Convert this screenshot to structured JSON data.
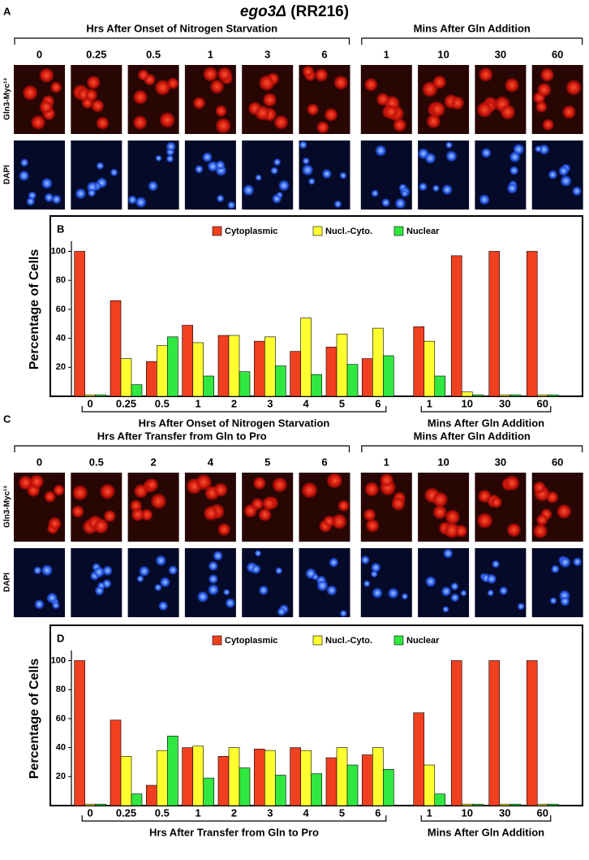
{
  "title": {
    "gene": "ego3Δ",
    "strain": "(RR216)"
  },
  "panel_a": {
    "label": "A",
    "groups": [
      {
        "label": "Hrs After Onset of Nitrogen Starvation",
        "times": [
          "0",
          "0.25",
          "0.5",
          "1",
          "3",
          "6"
        ]
      },
      {
        "label": "Mins After Gln Addition",
        "times": [
          "1",
          "10",
          "30",
          "60"
        ]
      }
    ],
    "rows": [
      "Gln3-Myc¹³",
      "DAPI"
    ]
  },
  "panel_c": {
    "label": "C",
    "groups": [
      {
        "label": "Hrs After Transfer from Gln to Pro",
        "times": [
          "0",
          "0.5",
          "2",
          "4",
          "5",
          "6"
        ]
      },
      {
        "label": "Mins After Gln Addition",
        "times": [
          "1",
          "10",
          "30",
          "60"
        ]
      }
    ],
    "rows": [
      "Gln3-Myc¹³",
      "DAPI"
    ]
  },
  "chart_data": [
    {
      "type": "bar",
      "label": "B",
      "y_label": "Percentage of Cells",
      "groups": [
        {
          "label": "Hrs After Onset of Nitrogen Starvation",
          "categories": [
            "0",
            "0.25",
            "0.5",
            "1",
            "2",
            "3",
            "4",
            "5",
            "6"
          ]
        },
        {
          "label": "Mins After Gln Addition",
          "categories": [
            "1",
            "10",
            "30",
            "60"
          ]
        }
      ],
      "series": [
        {
          "name": "Cytoplasmic",
          "color": "#f04020",
          "values": [
            100,
            66,
            24,
            49,
            42,
            38,
            31,
            34,
            26,
            48,
            97,
            100,
            100
          ]
        },
        {
          "name": "Nucl.-Cyto.",
          "color": "#ffff30",
          "values": [
            1,
            26,
            35,
            37,
            42,
            41,
            54,
            43,
            47,
            38,
            3,
            1,
            1
          ]
        },
        {
          "name": "Nuclear",
          "color": "#30e840",
          "values": [
            1,
            8,
            41,
            14,
            17,
            21,
            15,
            22,
            28,
            14,
            1,
            1,
            1
          ]
        }
      ],
      "ylim": [
        0,
        107
      ],
      "yticks": [
        20,
        40,
        60,
        80,
        100
      ]
    },
    {
      "type": "bar",
      "label": "D",
      "y_label": "Percentage of Cells",
      "groups": [
        {
          "label": "Hrs After Transfer from Gln to Pro",
          "categories": [
            "0",
            "0.25",
            "0.5",
            "1",
            "2",
            "3",
            "4",
            "5",
            "6"
          ]
        },
        {
          "label": "Mins After Gln Addition",
          "categories": [
            "1",
            "10",
            "30",
            "60"
          ]
        }
      ],
      "series": [
        {
          "name": "Cytoplasmic",
          "color": "#f04020",
          "values": [
            100,
            59,
            14,
            40,
            34,
            39,
            40,
            33,
            35,
            64,
            100,
            100,
            100
          ]
        },
        {
          "name": "Nucl.-Cyto.",
          "color": "#ffff30",
          "values": [
            1,
            34,
            38,
            41,
            40,
            38,
            38,
            40,
            40,
            28,
            1,
            1,
            1
          ]
        },
        {
          "name": "Nuclear",
          "color": "#30e840",
          "values": [
            1,
            8,
            48,
            19,
            26,
            21,
            22,
            28,
            25,
            8,
            1,
            1,
            1
          ]
        }
      ],
      "ylim": [
        0,
        107
      ],
      "yticks": [
        20,
        40,
        60,
        80,
        100
      ]
    }
  ]
}
